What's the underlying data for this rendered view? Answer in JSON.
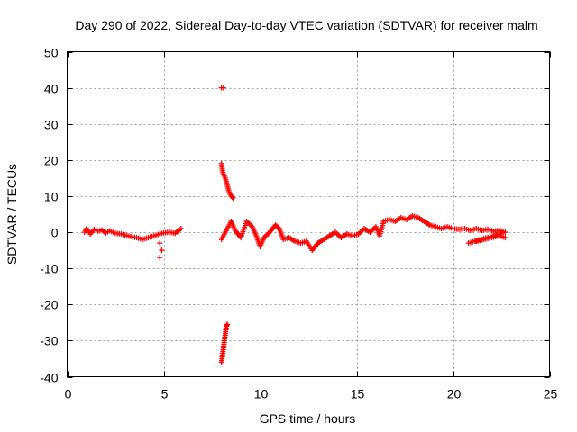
{
  "chart_data": {
    "type": "scatter",
    "title": "Day 290 of 2022, Sidereal Day-to-day VTEC variation (SDTVAR) for receiver malm",
    "xlabel": "GPS time / hours",
    "ylabel": "SDTVAR / TECUs",
    "xlim": [
      0,
      25
    ],
    "ylim": [
      -40,
      50
    ],
    "x_ticks": [
      0,
      5,
      10,
      15,
      20,
      25
    ],
    "y_ticks": [
      -40,
      -30,
      -20,
      -10,
      0,
      10,
      20,
      30,
      40,
      50
    ],
    "x_tick_labels": [
      "0",
      "5",
      "10",
      "15",
      "20",
      "25"
    ],
    "y_tick_labels": [
      "-40",
      "-30",
      "-20",
      "-10",
      "0",
      "10",
      "20",
      "30",
      "40",
      "50"
    ],
    "grid": true,
    "marker": "+",
    "color": "#ff0000",
    "series": [
      {
        "name": "SDTVAR",
        "points": [
          [
            0.9,
            0.0
          ],
          [
            1.0,
            1.0
          ],
          [
            1.2,
            -0.5
          ],
          [
            1.4,
            0.8
          ],
          [
            1.6,
            0.3
          ],
          [
            1.8,
            0.6
          ],
          [
            2.0,
            -0.2
          ],
          [
            2.2,
            0.4
          ],
          [
            2.5,
            -0.3
          ],
          [
            2.8,
            -0.5
          ],
          [
            3.0,
            -0.8
          ],
          [
            3.3,
            -1.2
          ],
          [
            3.6,
            -1.5
          ],
          [
            3.9,
            -2.0
          ],
          [
            4.2,
            -1.5
          ],
          [
            4.5,
            -1.0
          ],
          [
            4.8,
            -0.5
          ],
          [
            5.0,
            -0.2
          ],
          [
            5.3,
            0.0
          ],
          [
            5.6,
            -0.3
          ],
          [
            5.9,
            1.0
          ],
          [
            4.8,
            -3.0
          ],
          [
            4.9,
            -5.0
          ],
          [
            4.8,
            -7.0
          ],
          [
            8.0,
            40.0
          ],
          [
            8.1,
            40.0
          ],
          [
            8.0,
            19.0
          ],
          [
            8.05,
            17.0
          ],
          [
            8.1,
            16.0
          ],
          [
            8.2,
            15.0
          ],
          [
            8.3,
            13.0
          ],
          [
            8.4,
            11.0
          ],
          [
            8.5,
            10.0
          ],
          [
            8.6,
            9.5
          ],
          [
            8.0,
            -36.0
          ],
          [
            8.05,
            -34.0
          ],
          [
            8.1,
            -32.0
          ],
          [
            8.15,
            -30.0
          ],
          [
            8.2,
            -28.0
          ],
          [
            8.25,
            -26.0
          ],
          [
            8.3,
            -25.5
          ],
          [
            8.0,
            -2.0
          ],
          [
            8.3,
            1.0
          ],
          [
            8.5,
            3.0
          ],
          [
            8.7,
            0.5
          ],
          [
            9.0,
            -1.5
          ],
          [
            9.3,
            3.0
          ],
          [
            9.6,
            1.5
          ],
          [
            9.8,
            -1.0
          ],
          [
            10.0,
            -4.0
          ],
          [
            10.2,
            -1.5
          ],
          [
            10.5,
            0.0
          ],
          [
            10.8,
            2.0
          ],
          [
            11.0,
            1.0
          ],
          [
            11.2,
            -2.0
          ],
          [
            11.5,
            -1.5
          ],
          [
            11.8,
            -2.5
          ],
          [
            12.1,
            -3.0
          ],
          [
            12.4,
            -2.5
          ],
          [
            12.7,
            -5.0
          ],
          [
            13.0,
            -3.0
          ],
          [
            13.3,
            -2.0
          ],
          [
            13.6,
            -1.0
          ],
          [
            13.9,
            0.0
          ],
          [
            14.2,
            -1.5
          ],
          [
            14.5,
            -0.5
          ],
          [
            14.8,
            -1.0
          ],
          [
            15.1,
            -0.5
          ],
          [
            15.4,
            1.0
          ],
          [
            15.7,
            0.0
          ],
          [
            16.0,
            1.5
          ],
          [
            16.2,
            -1.0
          ],
          [
            16.4,
            3.0
          ],
          [
            16.7,
            3.5
          ],
          [
            17.0,
            3.0
          ],
          [
            17.3,
            4.0
          ],
          [
            17.6,
            3.5
          ],
          [
            17.9,
            4.5
          ],
          [
            18.2,
            4.0
          ],
          [
            18.5,
            3.0
          ],
          [
            18.8,
            2.0
          ],
          [
            19.1,
            1.5
          ],
          [
            19.4,
            1.0
          ],
          [
            19.7,
            1.5
          ],
          [
            20.0,
            1.0
          ],
          [
            20.3,
            0.8
          ],
          [
            20.6,
            1.0
          ],
          [
            20.9,
            0.5
          ],
          [
            21.2,
            1.0
          ],
          [
            21.5,
            0.5
          ],
          [
            21.8,
            0.8
          ],
          [
            22.1,
            0.3
          ],
          [
            22.4,
            0.5
          ],
          [
            22.7,
            0.0
          ],
          [
            20.8,
            -3.0
          ],
          [
            21.2,
            -2.5
          ],
          [
            21.6,
            -2.0
          ],
          [
            22.0,
            -1.5
          ],
          [
            22.4,
            -1.0
          ],
          [
            22.7,
            -1.5
          ]
        ],
        "segments": [
          {
            "name": "band-0-6h",
            "x": [
              0.85,
              6.0
            ],
            "y_range": [
              -2.5,
              1.5
            ]
          },
          {
            "name": "spike-8h-upper",
            "x": [
              8.0,
              8.6
            ],
            "y_range": [
              9.0,
              19.0
            ]
          },
          {
            "name": "spike-8h-lower",
            "x": [
              8.0,
              8.3
            ],
            "y_range": [
              -36.0,
              -25.0
            ]
          },
          {
            "name": "band-8-16h",
            "x": [
              8.0,
              16.0
            ],
            "y_range": [
              -5.0,
              4.0
            ]
          },
          {
            "name": "band-16-23h",
            "x": [
              16.0,
              22.8
            ],
            "y_range": [
              -3.5,
              5.5
            ]
          }
        ]
      }
    ]
  }
}
